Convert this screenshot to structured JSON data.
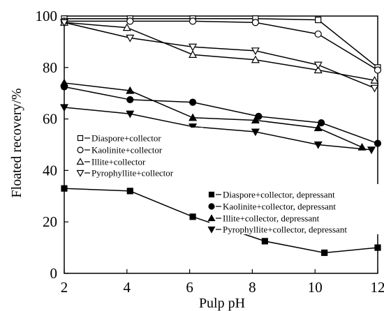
{
  "chart_data": {
    "type": "line",
    "xlabel": "Pulp pH",
    "ylabel": "Floated recovery/%",
    "xlim": [
      2,
      12
    ],
    "ylim": [
      0,
      100
    ],
    "xticks": [
      "2",
      "4",
      "6",
      "8",
      "10",
      "12"
    ],
    "yticks": [
      "0",
      "20",
      "40",
      "60",
      "80",
      "100"
    ],
    "grid": false,
    "legend_placement": "left-middle and right-middle",
    "series": [
      {
        "name": "Diaspore+collector",
        "marker": "square-open",
        "x": [
          2,
          4.1,
          6.1,
          8.1,
          10.1,
          12
        ],
        "y": [
          99,
          99,
          99,
          99,
          98.5,
          80
        ]
      },
      {
        "name": "Kaolinite+collector",
        "marker": "circle-open",
        "x": [
          2,
          4.1,
          6.1,
          8.1,
          10.1,
          12
        ],
        "y": [
          98,
          98,
          98,
          97.5,
          93,
          79
        ]
      },
      {
        "name": "Illite+collector",
        "marker": "triangle-up-open",
        "x": [
          2,
          4,
          6.1,
          8.1,
          10.1,
          11.9
        ],
        "y": [
          97.5,
          95.5,
          85,
          83,
          79,
          75
        ]
      },
      {
        "name": "Pyrophyllite+collector",
        "marker": "triangle-down-open",
        "x": [
          2,
          4.1,
          6.1,
          8.1,
          10.1,
          11.9
        ],
        "y": [
          97.5,
          91.5,
          88,
          86.5,
          81,
          72
        ]
      },
      {
        "name": "Diaspore+collector, depressant",
        "marker": "square-filled",
        "x": [
          2,
          4.1,
          6.1,
          8.4,
          10.3,
          12
        ],
        "y": [
          33,
          32,
          22,
          12.5,
          8,
          10
        ]
      },
      {
        "name": "Kaolinite+collector, depressant",
        "marker": "circle-filled",
        "x": [
          2,
          4.1,
          6.1,
          8.2,
          10.2,
          12
        ],
        "y": [
          72.5,
          67.5,
          66.5,
          61,
          58.5,
          50.5
        ]
      },
      {
        "name": "Illite+collector, depressant",
        "marker": "triangle-up-filled",
        "x": [
          2,
          4.1,
          6.1,
          8.1,
          10.1,
          11.5
        ],
        "y": [
          74,
          71,
          60.5,
          59.5,
          56.5,
          49
        ]
      },
      {
        "name": "Pyrophyllite+collector, depressant",
        "marker": "triangle-down-filled",
        "x": [
          2,
          4.1,
          6.1,
          8.1,
          10.1,
          11.8
        ],
        "y": [
          64.5,
          62,
          57,
          55,
          50,
          48
        ]
      }
    ]
  }
}
